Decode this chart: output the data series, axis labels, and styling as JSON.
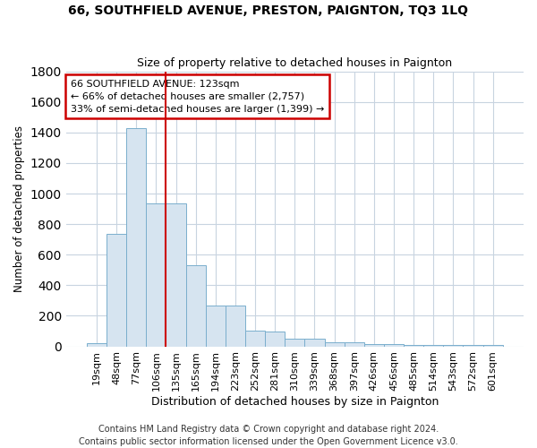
{
  "title1": "66, SOUTHFIELD AVENUE, PRESTON, PAIGNTON, TQ3 1LQ",
  "title2": "Size of property relative to detached houses in Paignton",
  "xlabel": "Distribution of detached houses by size in Paignton",
  "ylabel": "Number of detached properties",
  "categories": [
    "19sqm",
    "48sqm",
    "77sqm",
    "106sqm",
    "135sqm",
    "165sqm",
    "194sqm",
    "223sqm",
    "252sqm",
    "281sqm",
    "310sqm",
    "339sqm",
    "368sqm",
    "397sqm",
    "426sqm",
    "456sqm",
    "485sqm",
    "514sqm",
    "543sqm",
    "572sqm",
    "601sqm"
  ],
  "values": [
    20,
    735,
    1430,
    935,
    935,
    530,
    270,
    270,
    105,
    95,
    50,
    50,
    25,
    25,
    15,
    15,
    10,
    10,
    10,
    10,
    10
  ],
  "bar_color": "#d6e4f0",
  "bar_edge_color": "#7aaecd",
  "vline_color": "#cc0000",
  "vline_index": 3,
  "annotation_text": "66 SOUTHFIELD AVENUE: 123sqm\n← 66% of detached houses are smaller (2,757)\n33% of semi-detached houses are larger (1,399) →",
  "annotation_box_color": "white",
  "annotation_box_edge": "#cc0000",
  "footer": "Contains HM Land Registry data © Crown copyright and database right 2024.\nContains public sector information licensed under the Open Government Licence v3.0.",
  "bg_color": "#ffffff",
  "plot_bg_color": "#ffffff",
  "grid_color": "#c8d4e0",
  "ylim": [
    0,
    1800
  ],
  "title1_fontsize": 10,
  "title2_fontsize": 9,
  "xlabel_fontsize": 9,
  "ylabel_fontsize": 8.5,
  "footer_fontsize": 7,
  "tick_fontsize": 8
}
